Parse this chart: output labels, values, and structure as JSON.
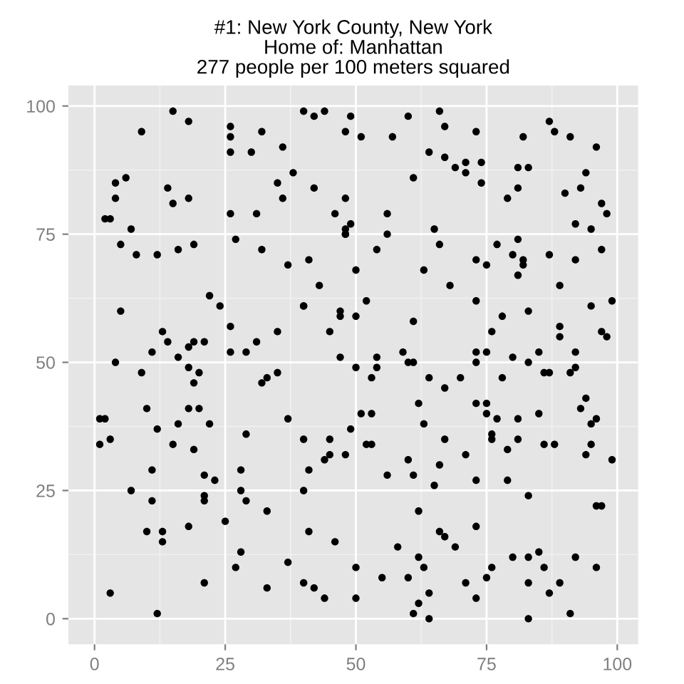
{
  "chart_data": {
    "type": "scatter",
    "title": "#1: New York County, New York\nHome of: Manhattan\n277 people per 100 meters squared",
    "x": [
      15,
      18,
      9,
      26,
      26,
      32,
      26,
      30,
      4,
      6,
      14,
      4,
      18,
      15,
      2,
      3,
      26,
      31,
      7,
      5,
      27,
      19,
      16,
      32,
      8,
      12,
      22,
      24,
      5,
      13,
      26,
      14,
      19,
      21,
      31,
      18,
      11,
      16,
      26,
      29,
      4,
      42,
      44,
      49,
      60,
      66,
      48,
      51,
      57,
      67,
      36,
      64,
      67,
      69,
      38,
      61,
      42,
      35,
      36,
      48,
      56,
      46,
      49,
      48,
      48,
      48,
      56,
      65,
      66,
      54,
      37,
      41,
      50,
      63,
      68,
      43,
      52,
      40,
      40,
      47,
      50,
      47,
      61,
      35,
      45,
      47,
      54,
      59,
      60,
      61,
      40,
      87,
      73,
      82,
      88,
      91,
      96,
      71,
      74,
      71,
      81,
      83,
      94,
      74,
      81,
      93,
      79,
      90,
      97,
      98,
      92,
      95,
      81,
      77,
      97,
      80,
      82,
      82,
      87,
      73,
      75,
      92,
      81,
      89,
      73,
      95,
      99,
      78,
      83,
      76,
      89,
      89,
      97,
      98,
      73,
      75,
      80,
      85,
      92,
      73,
      83,
      9,
      18,
      20,
      19,
      32,
      10,
      18,
      20,
      1,
      2,
      12,
      16,
      22,
      1,
      3,
      15,
      29,
      19,
      11,
      21,
      23,
      28,
      7,
      28,
      11,
      21,
      21,
      29,
      25,
      10,
      13,
      18,
      13,
      28,
      27,
      21,
      3,
      12,
      50,
      54,
      35,
      33,
      53,
      64,
      67,
      62,
      37,
      51,
      53,
      49,
      63,
      40,
      45,
      52,
      53,
      67,
      44,
      45,
      48,
      60,
      41,
      66,
      56,
      61,
      65,
      40,
      33,
      62,
      41,
      66,
      67,
      46,
      58,
      69,
      37,
      50,
      62,
      63,
      55,
      60,
      33,
      40,
      42,
      44,
      50,
      64,
      62,
      61,
      64,
      86,
      87,
      91,
      92,
      70,
      78,
      94,
      93,
      73,
      75,
      75,
      77,
      81,
      85,
      96,
      95,
      76,
      76,
      81,
      86,
      88,
      95,
      71,
      79,
      94,
      99,
      73,
      79,
      83,
      96,
      97,
      73,
      80,
      83,
      85,
      92,
      76,
      86,
      96,
      71,
      75,
      83,
      89,
      87,
      73,
      91,
      83
    ],
    "values": [
      99,
      97,
      95,
      96,
      94,
      95,
      91,
      91,
      85,
      86,
      84,
      82,
      82,
      81,
      78,
      78,
      79,
      79,
      76,
      73,
      74,
      73,
      72,
      72,
      71,
      71,
      63,
      61,
      60,
      56,
      57,
      54,
      54,
      54,
      54,
      53,
      52,
      51,
      52,
      52,
      50,
      98,
      99,
      98,
      98,
      99,
      95,
      94,
      94,
      96,
      92,
      91,
      90,
      88,
      87,
      86,
      84,
      85,
      82,
      82,
      79,
      79,
      77,
      76,
      75,
      75,
      75,
      76,
      73,
      72,
      69,
      70,
      68,
      68,
      65,
      65,
      62,
      61,
      61,
      60,
      59,
      59,
      58,
      56,
      56,
      51,
      51,
      52,
      50,
      50,
      99,
      97,
      95,
      94,
      95,
      94,
      92,
      89,
      89,
      87,
      88,
      88,
      87,
      85,
      84,
      84,
      82,
      83,
      81,
      79,
      77,
      76,
      74,
      73,
      72,
      71,
      70,
      69,
      71,
      70,
      69,
      70,
      67,
      65,
      62,
      61,
      62,
      59,
      60,
      56,
      57,
      55,
      56,
      55,
      52,
      52,
      51,
      52,
      52,
      50,
      50,
      48,
      49,
      48,
      46,
      46,
      41,
      41,
      41,
      39,
      39,
      37,
      38,
      38,
      34,
      35,
      34,
      36,
      33,
      29,
      28,
      27,
      29,
      25,
      25,
      23,
      24,
      23,
      23,
      19,
      17,
      17,
      18,
      15,
      13,
      10,
      7,
      5,
      1,
      49,
      49,
      48,
      47,
      47,
      47,
      45,
      42,
      39,
      40,
      40,
      37,
      38,
      35,
      35,
      34,
      34,
      35,
      31,
      32,
      32,
      31,
      29,
      30,
      28,
      28,
      26,
      25,
      21,
      21,
      17,
      17,
      16,
      15,
      14,
      14,
      11,
      10,
      12,
      10,
      8,
      8,
      6,
      7,
      6,
      4,
      4,
      5,
      3,
      1,
      0,
      48,
      48,
      48,
      49,
      47,
      47,
      43,
      41,
      42,
      42,
      40,
      39,
      39,
      40,
      39,
      38,
      36,
      35,
      35,
      34,
      34,
      34,
      32,
      33,
      32,
      31,
      27,
      27,
      24,
      22,
      22,
      18,
      12,
      12,
      13,
      12,
      10,
      10,
      10,
      7,
      8,
      7,
      7,
      5,
      4,
      1,
      0
    ],
    "color": "#000000",
    "marker": "circle",
    "xlim": [
      -5,
      104
    ],
    "ylim": [
      -5,
      104
    ],
    "xticks": [
      0,
      25,
      50,
      75,
      100
    ],
    "yticks": [
      0,
      25,
      50,
      75,
      100
    ],
    "grid": true
  }
}
